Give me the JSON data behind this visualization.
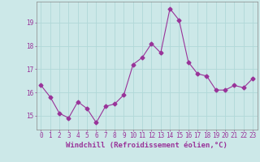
{
  "x": [
    0,
    1,
    2,
    3,
    4,
    5,
    6,
    7,
    8,
    9,
    10,
    11,
    12,
    13,
    14,
    15,
    16,
    17,
    18,
    19,
    20,
    21,
    22,
    23
  ],
  "y": [
    16.3,
    15.8,
    15.1,
    14.9,
    15.6,
    15.3,
    14.7,
    15.4,
    15.5,
    15.9,
    17.2,
    17.5,
    18.1,
    17.7,
    19.6,
    19.1,
    17.3,
    16.8,
    16.7,
    16.1,
    16.1,
    16.3,
    16.2,
    16.6
  ],
  "line_color": "#993399",
  "marker": "D",
  "markersize": 2.5,
  "linewidth": 0.8,
  "xlabel": "Windchill (Refroidissement éolien,°C)",
  "xlabel_fontsize": 6.5,
  "xtick_labels": [
    "0",
    "1",
    "2",
    "3",
    "4",
    "5",
    "6",
    "7",
    "8",
    "9",
    "10",
    "11",
    "12",
    "13",
    "14",
    "15",
    "16",
    "17",
    "18",
    "19",
    "20",
    "21",
    "22",
    "23"
  ],
  "ytick_values": [
    15,
    16,
    17,
    18,
    19
  ],
  "ylim": [
    14.4,
    19.9
  ],
  "xlim": [
    -0.5,
    23.5
  ],
  "bg_color": "#cce8e8",
  "grid_color": "#b0d8d8",
  "tick_color": "#993399",
  "tick_fontsize": 5.5
}
